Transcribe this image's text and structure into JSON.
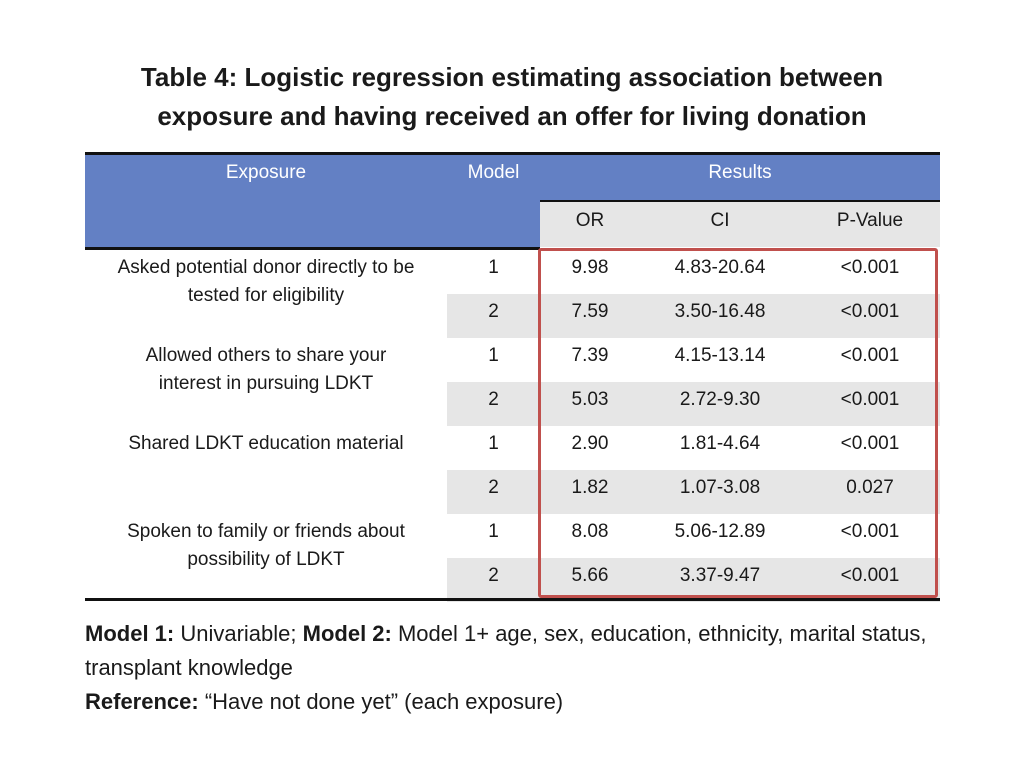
{
  "title": {
    "line1": "Table 4: Logistic regression estimating association between",
    "line2": "exposure and having received an offer for living donation"
  },
  "table": {
    "headers": {
      "exposure": "Exposure",
      "model": "Model",
      "results": "Results",
      "or": "OR",
      "ci": "CI",
      "pvalue": "P-Value"
    },
    "groups": [
      {
        "label_lines": [
          "Asked potential donor directly to be",
          "tested for eligibility"
        ],
        "rows": [
          {
            "model": "1",
            "or": "9.98",
            "ci": "4.83-20.64",
            "p": "<0.001"
          },
          {
            "model": "2",
            "or": "7.59",
            "ci": "3.50-16.48",
            "p": "<0.001"
          }
        ]
      },
      {
        "label_lines": [
          "Allowed others to share your",
          "interest in pursuing LDKT"
        ],
        "rows": [
          {
            "model": "1",
            "or": "7.39",
            "ci": "4.15-13.14",
            "p": "<0.001"
          },
          {
            "model": "2",
            "or": "5.03",
            "ci": "2.72-9.30",
            "p": "<0.001"
          }
        ]
      },
      {
        "label_lines": [
          "Shared LDKT education material"
        ],
        "rows": [
          {
            "model": "1",
            "or": "2.90",
            "ci": "1.81-4.64",
            "p": "<0.001"
          },
          {
            "model": "2",
            "or": "1.82",
            "ci": "1.07-3.08",
            "p": "0.027"
          }
        ]
      },
      {
        "label_lines": [
          "Spoken to family or friends about",
          "possibility of LDKT"
        ],
        "rows": [
          {
            "model": "1",
            "or": "8.08",
            "ci": "5.06-12.89",
            "p": "<0.001"
          },
          {
            "model": "2",
            "or": "5.66",
            "ci": "3.37-9.47",
            "p": "<0.001"
          }
        ]
      }
    ]
  },
  "notes": {
    "model1_label": "Model 1:",
    "model1_text": " Univariable; ",
    "model2_label": "Model 2:",
    "model2_text": " Model 1+ age, sex, education, ethnicity, marital status, transplant knowledge",
    "reference_label": "Reference:",
    "reference_text": " “Have not done yet” (each exposure)"
  },
  "colors": {
    "header_blue": "#6380c4",
    "row_shade": "#e6e6e6",
    "highlight_box": "#c0504d"
  }
}
